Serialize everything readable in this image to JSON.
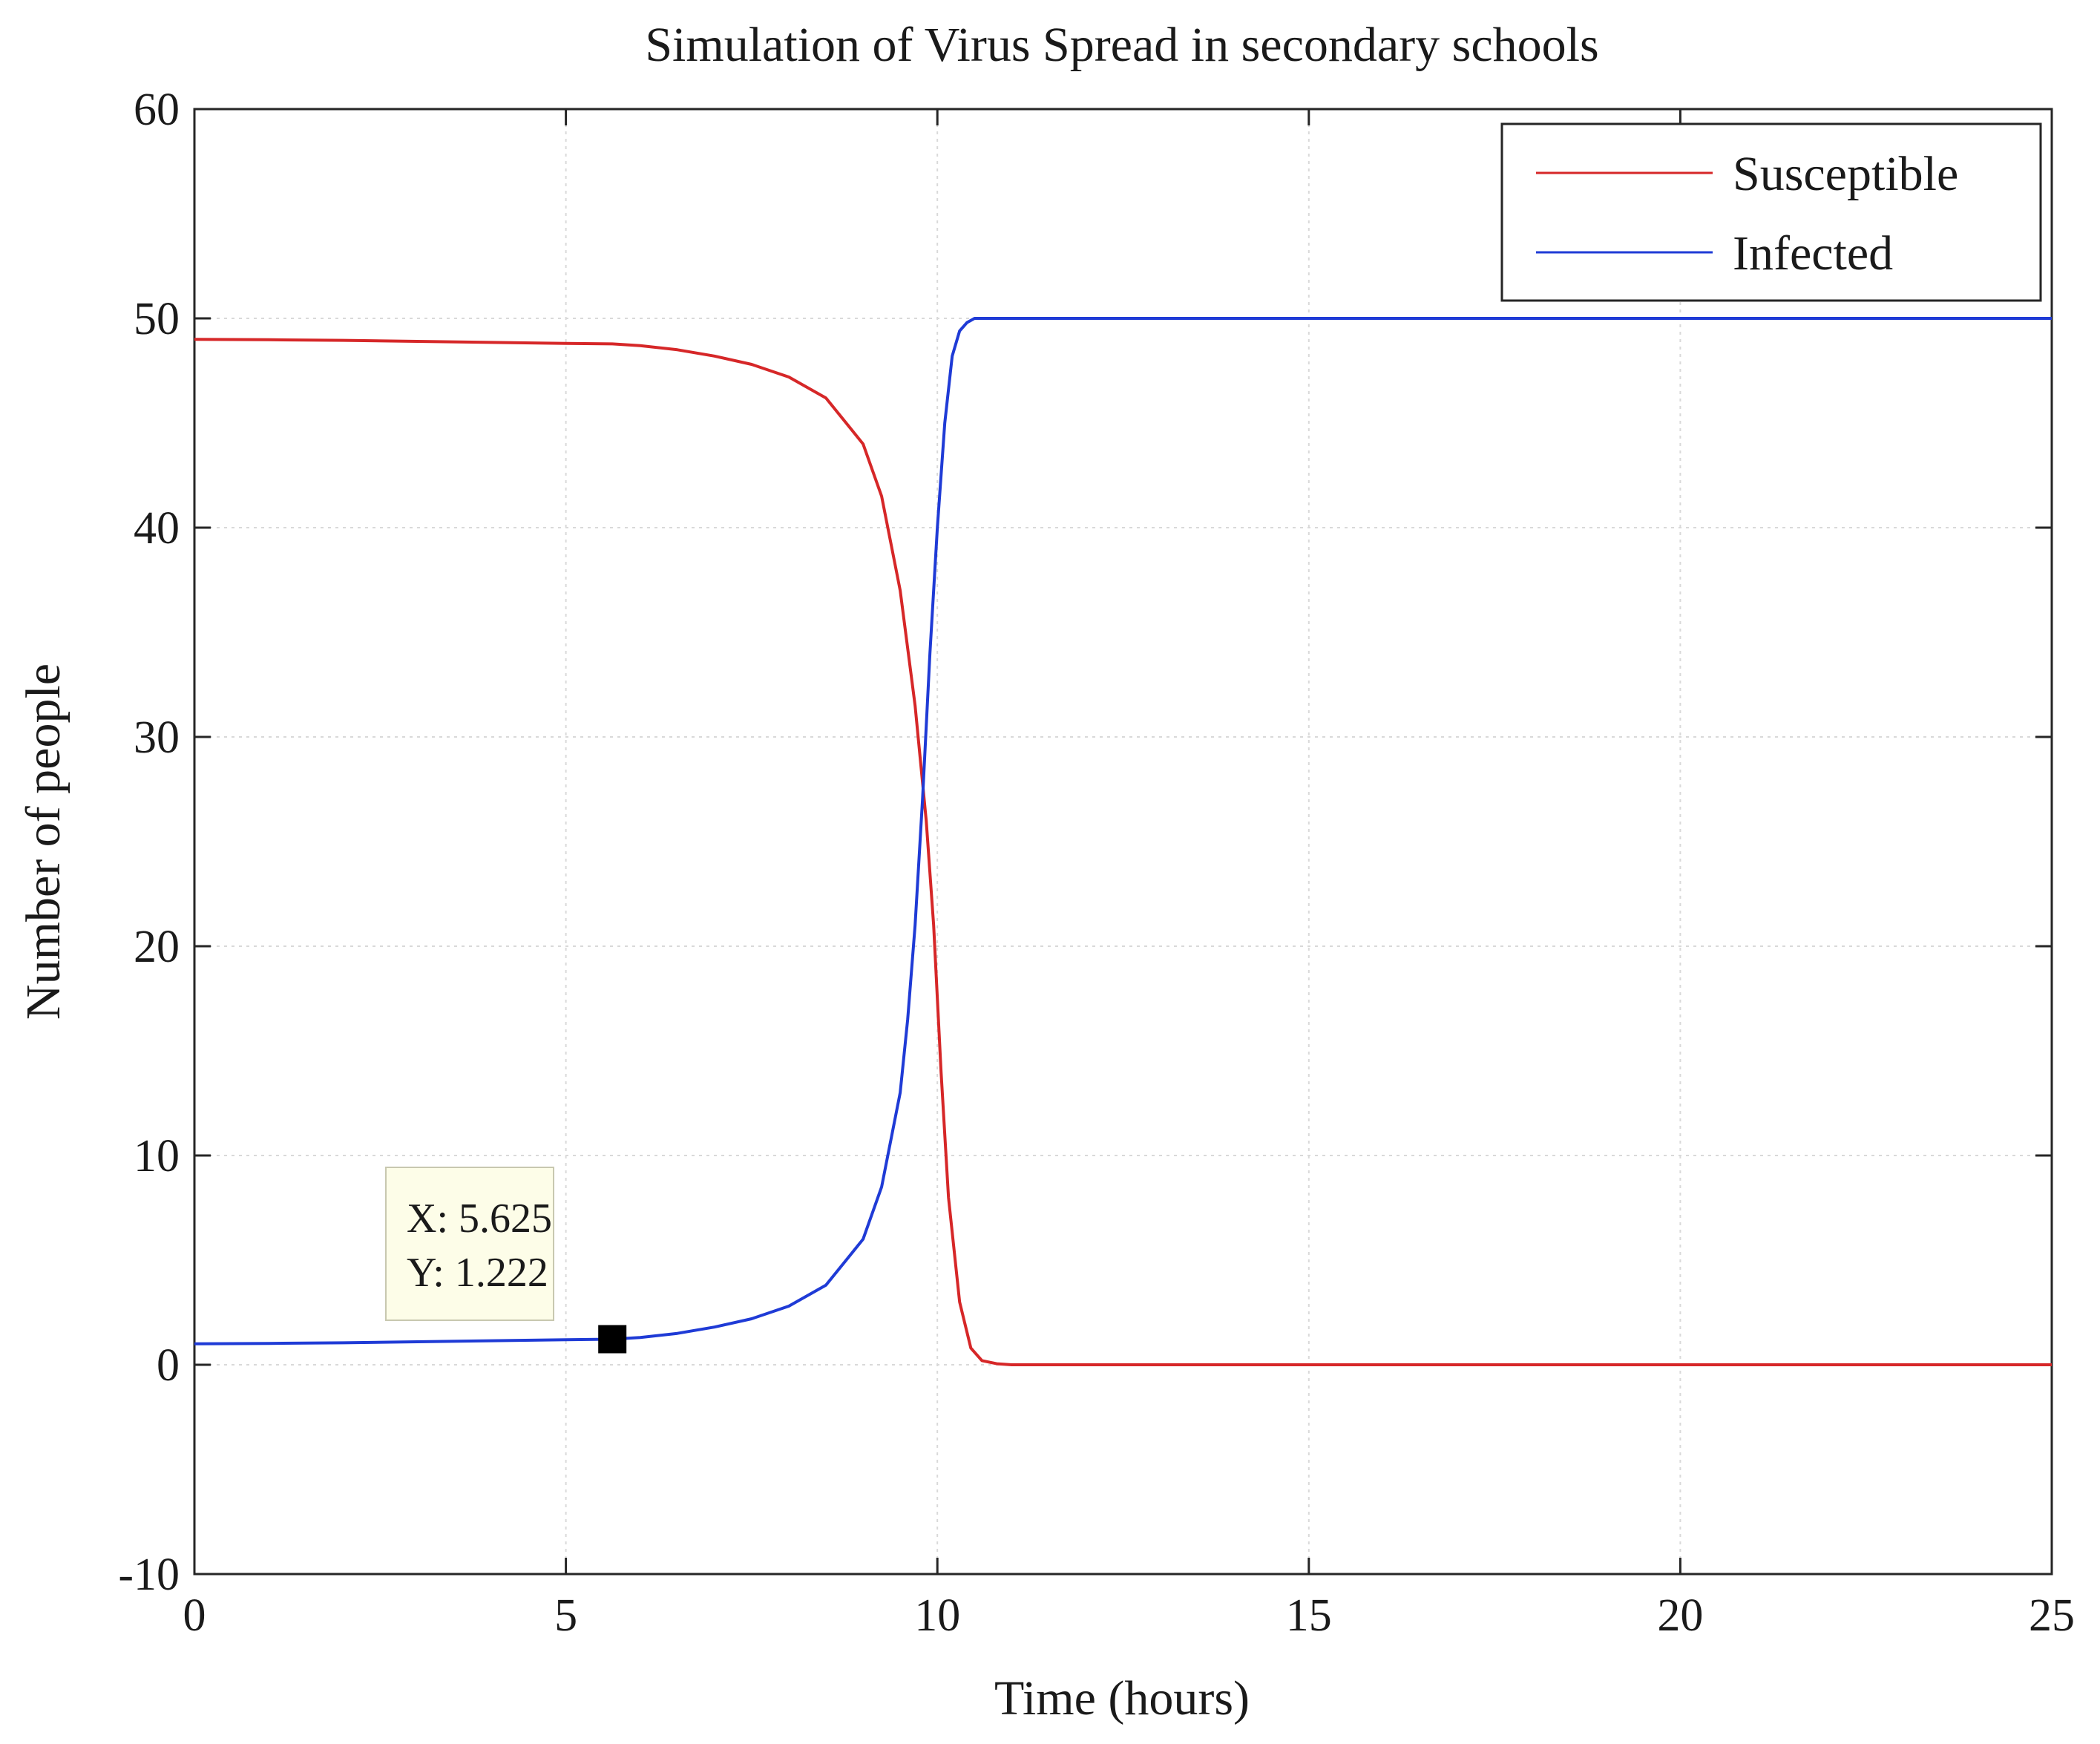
{
  "chart_data": {
    "type": "line",
    "title": "Simulation of Virus Spread in secondary schools",
    "xlabel": "Time (hours)",
    "ylabel": "Number of people",
    "xlim": [
      0,
      25
    ],
    "ylim": [
      -10,
      60
    ],
    "xticks": [
      0,
      5,
      10,
      15,
      20,
      25
    ],
    "yticks": [
      -10,
      0,
      10,
      20,
      30,
      40,
      50,
      60
    ],
    "grid": true,
    "legend_position": "top-right",
    "series": [
      {
        "name": "Susceptible",
        "color": "#d62728",
        "x": [
          0,
          1,
          2,
          3,
          4,
          5,
          5.625,
          6,
          6.5,
          7,
          7.5,
          8,
          8.5,
          9,
          9.25,
          9.5,
          9.7,
          9.85,
          9.95,
          10.05,
          10.15,
          10.3,
          10.45,
          10.6,
          10.8,
          11,
          12,
          15,
          20,
          25
        ],
        "y": [
          49,
          48.98,
          48.95,
          48.9,
          48.85,
          48.8,
          48.78,
          48.7,
          48.5,
          48.2,
          47.8,
          47.2,
          46.2,
          44.0,
          41.5,
          37.0,
          31.5,
          26.0,
          21.0,
          14.0,
          8.0,
          3.0,
          0.8,
          0.2,
          0.05,
          0,
          0,
          0,
          0,
          0
        ]
      },
      {
        "name": "Infected",
        "color": "#1f3bd6",
        "x": [
          0,
          1,
          2,
          3,
          4,
          5,
          5.625,
          6,
          6.5,
          7,
          7.5,
          8,
          8.5,
          9,
          9.25,
          9.5,
          9.6,
          9.7,
          9.8,
          9.9,
          10.0,
          10.1,
          10.2,
          10.3,
          10.4,
          10.5,
          11,
          12,
          15,
          20,
          25
        ],
        "y": [
          1,
          1.02,
          1.05,
          1.1,
          1.15,
          1.2,
          1.222,
          1.3,
          1.5,
          1.8,
          2.2,
          2.8,
          3.8,
          6.0,
          8.5,
          13.0,
          16.5,
          21.0,
          27.0,
          34.0,
          40.0,
          45.0,
          48.2,
          49.4,
          49.8,
          50,
          50,
          50,
          50,
          50,
          50
        ]
      }
    ],
    "datatip": {
      "x": 5.625,
      "y": 1.222,
      "x_text": "X: 5.625",
      "y_text": "Y: 1.222"
    }
  }
}
